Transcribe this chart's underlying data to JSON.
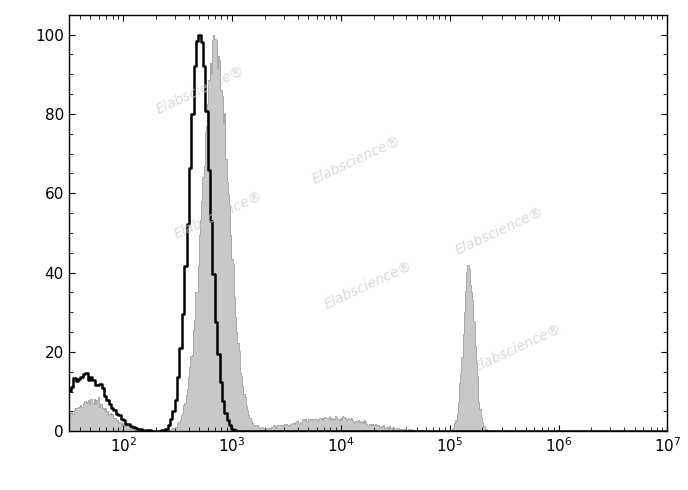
{
  "title": "",
  "xlabel": "",
  "ylabel": "",
  "xlim_log": [
    1.5,
    7
  ],
  "ylim": [
    0,
    105
  ],
  "yticks": [
    0,
    20,
    40,
    60,
    80,
    100
  ],
  "xtick_powers": [
    2,
    3,
    4,
    5,
    6,
    7
  ],
  "watermark": "Elabscience",
  "background_color": "#ffffff",
  "filled_color": "#c8c8c8",
  "filled_edge_color": "#a0a0a0",
  "black_line_color": "#000000",
  "seed_stained": 7,
  "seed_unstained": 13
}
